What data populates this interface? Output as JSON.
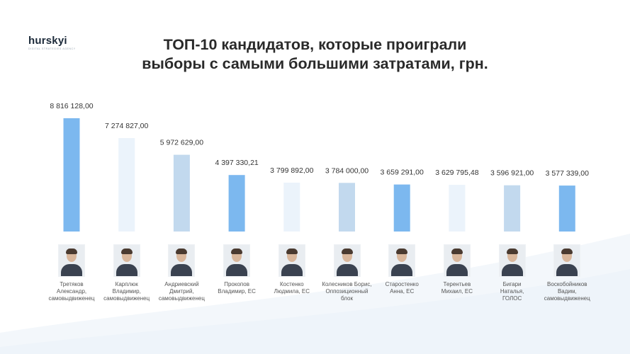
{
  "logo": {
    "brand": "hurskyi",
    "tagline": "DIGITAL STRATEGIES AGENCY"
  },
  "title": {
    "line1": "ТОП-10 кандидатов, которые проиграли",
    "line2": "выборы с самыми большими затратами, грн."
  },
  "colors": {
    "bar_strong": "#7cb8ef",
    "bar_medium": "#c2d9ee",
    "bar_light": "#ebf3fb"
  },
  "chart_data": {
    "type": "bar",
    "title": "ТОП-10 кандидатов, которые проиграли выборы с самыми большими затратами, грн.",
    "xlabel": "",
    "ylabel": "",
    "grid": false,
    "legend": "none",
    "ylim": [
      0,
      8816128
    ],
    "data_labels": [
      "8 816 128,00",
      "7 274 827,00",
      "5 972 629,00",
      "4 397 330,21",
      "3 799 892,00",
      "3 784 000,00",
      "3 659 291,00",
      "3 629 795,48",
      "3 596 921,00",
      "3 577 339,00"
    ],
    "values": [
      8816128.0,
      7274827.0,
      5972629.0,
      4397330.21,
      3799892.0,
      3784000.0,
      3659291.0,
      3629795.48,
      3596921.0,
      3577339.0
    ],
    "bar_colors": [
      "#7cb8ef",
      "#ebf3fb",
      "#c2d9ee",
      "#7cb8ef",
      "#ebf3fb",
      "#c2d9ee",
      "#7cb8ef",
      "#ebf3fb",
      "#c2d9ee",
      "#7cb8ef"
    ],
    "categories": [
      {
        "lines": [
          "Третяков",
          "Александр,",
          "самовыдвиженец"
        ]
      },
      {
        "lines": [
          "Карплюк",
          "Владимир,",
          "самовыдвиженец"
        ]
      },
      {
        "lines": [
          "Андриевский",
          "Дмитрий,",
          "самовыдвиженец"
        ]
      },
      {
        "lines": [
          "Прокопов",
          "Владимир, ЕС"
        ]
      },
      {
        "lines": [
          "Костенко",
          "Людмила, ЕС"
        ]
      },
      {
        "lines": [
          "Колесников Борис,",
          "Оппозиционный",
          "блок"
        ]
      },
      {
        "lines": [
          "Старостенко",
          "Анна, ЕС"
        ]
      },
      {
        "lines": [
          "Терентьев",
          "Михаил, ЕС"
        ]
      },
      {
        "lines": [
          "Бигари",
          "Наталья,",
          "ГОЛОС"
        ]
      },
      {
        "lines": [
          "Воскобойников",
          "Вадим,",
          "самовыдвиженец"
        ]
      }
    ]
  }
}
